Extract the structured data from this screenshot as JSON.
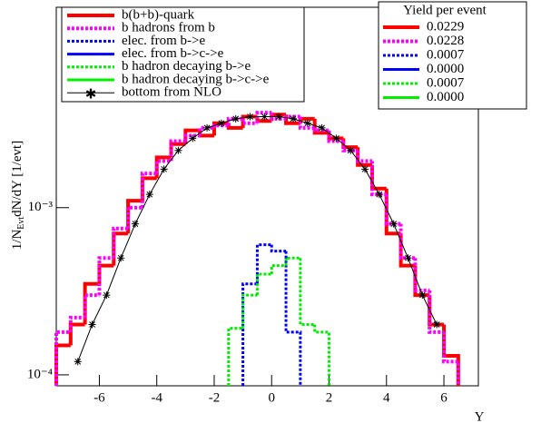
{
  "chart_data": {
    "type": "histogram",
    "log_y": true,
    "xlabel": "Y",
    "ylabel_parts": [
      "1/N",
      "Evt",
      "dN/dY [1/evt]"
    ],
    "xlim": [
      -7.5,
      7.2
    ],
    "ylim": [
      8.6e-05,
      0.0158
    ],
    "xticks": [
      -6,
      -4,
      -2,
      0,
      2,
      4,
      6
    ],
    "yticks": [
      {
        "value": 0.0001,
        "label": "10⁻⁴"
      },
      {
        "value": 0.001,
        "label": "10⁻³"
      }
    ],
    "bins": [
      -7.5,
      -7,
      -6.5,
      -6,
      -5.5,
      -5,
      -4.5,
      -4,
      -3.5,
      -3,
      -2.5,
      -2,
      -1.5,
      -1,
      -0.5,
      0,
      0.5,
      1,
      1.5,
      2,
      2.5,
      3,
      3.5,
      4,
      4.5,
      5,
      5.5,
      6,
      6.5,
      7
    ],
    "yield_header": "Yield per event",
    "series": [
      {
        "name": "b(b+b)-quark",
        "color": "#ff0000",
        "style": "solid",
        "width": 4,
        "yield": 0.0229,
        "yield_label": "0.0229",
        "values": [
          0.00015,
          0.0002,
          0.00035,
          0.00045,
          0.0007,
          0.0011,
          0.0015,
          0.002,
          0.0024,
          0.0029,
          0.0027,
          0.0032,
          0.003,
          0.0035,
          0.0033,
          0.0036,
          0.0032,
          0.0034,
          0.0028,
          0.0026,
          0.0023,
          0.0018,
          0.0013,
          0.0007,
          0.00045,
          0.0003,
          0.0002,
          0.00013,
          null
        ]
      },
      {
        "name": "b hadrons from b",
        "color": "#ff00ff",
        "style": "dotted",
        "width": 4,
        "yield": 0.0228,
        "yield_label": "0.0228",
        "values": [
          0.00018,
          0.00022,
          0.0003,
          0.0005,
          0.00075,
          0.001,
          0.0016,
          0.0019,
          0.0025,
          0.0027,
          0.003,
          0.0031,
          0.0034,
          0.0032,
          0.0037,
          0.0034,
          0.0035,
          0.003,
          0.0029,
          0.0025,
          0.0022,
          0.0019,
          0.0012,
          0.0008,
          0.0005,
          0.00032,
          0.00018,
          0.00012,
          null
        ]
      },
      {
        "name": "elec. from b->e",
        "color": "#0000ff",
        "style": "dotted",
        "width": 3,
        "yield": 0.0007,
        "yield_label": "0.0007",
        "values": [
          null,
          null,
          null,
          null,
          null,
          null,
          null,
          null,
          null,
          null,
          null,
          null,
          null,
          0.00035,
          0.0006,
          0.00055,
          0.00018,
          null,
          null,
          null,
          null,
          null,
          null,
          null,
          null,
          null,
          null,
          null,
          null
        ]
      },
      {
        "name": "elec. from b->c->e",
        "color": "#0000ff",
        "style": "solid",
        "width": 3,
        "yield": 0,
        "yield_label": "0.0000",
        "values": [
          null,
          null,
          null,
          null,
          null,
          null,
          null,
          null,
          null,
          null,
          null,
          null,
          null,
          null,
          null,
          null,
          null,
          null,
          null,
          null,
          null,
          null,
          null,
          null,
          null,
          null,
          null,
          null,
          null
        ]
      },
      {
        "name": "b hadron decaying b->e",
        "color": "#00ee00",
        "style": "dotted",
        "width": 3,
        "yield": 0.0007,
        "yield_label": "0.0007",
        "values": [
          null,
          null,
          null,
          null,
          null,
          null,
          null,
          null,
          null,
          null,
          null,
          null,
          0.00019,
          0.0003,
          0.0004,
          0.00045,
          0.0005,
          0.0002,
          0.00018,
          null,
          null,
          null,
          null,
          null,
          null,
          null,
          null,
          null,
          null
        ]
      },
      {
        "name": "b hadron decaying b->c->e",
        "color": "#00ee00",
        "style": "solid",
        "width": 3,
        "yield": 0,
        "yield_label": "0.0000",
        "values": [
          null,
          null,
          null,
          null,
          null,
          null,
          null,
          null,
          null,
          null,
          null,
          null,
          null,
          null,
          null,
          null,
          null,
          null,
          null,
          null,
          null,
          null,
          null,
          null,
          null,
          null,
          null,
          null,
          null
        ]
      }
    ],
    "nlo": {
      "name": "bottom from NLO",
      "color": "#000000",
      "x": [
        -6.75,
        -6.25,
        -5.75,
        -5.25,
        -4.75,
        -4.25,
        -3.75,
        -3.25,
        -2.75,
        -2.25,
        -1.75,
        -1.25,
        -0.75,
        -0.25,
        0.25,
        0.75,
        1.25,
        1.75,
        2.25,
        2.75,
        3.25,
        3.75,
        4.25,
        4.75,
        5.25,
        5.75
      ],
      "values": [
        0.00012,
        0.0002,
        0.0003,
        0.0005,
        0.0008,
        0.0012,
        0.0017,
        0.0022,
        0.0026,
        0.003,
        0.0032,
        0.0034,
        0.0035,
        0.0035,
        0.0035,
        0.0034,
        0.0032,
        0.003,
        0.0026,
        0.0022,
        0.0017,
        0.0012,
        0.0008,
        0.0005,
        0.0003,
        0.0002
      ]
    }
  }
}
